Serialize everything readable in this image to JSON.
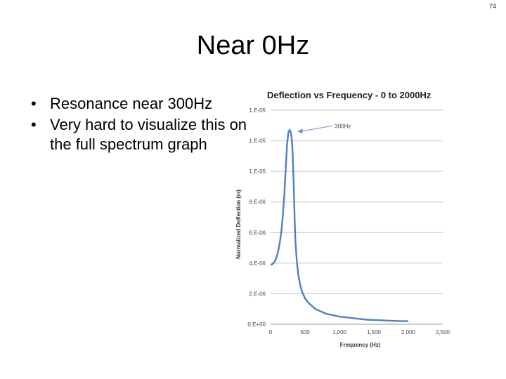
{
  "slide": {
    "number": "74",
    "title": "Near 0Hz",
    "bullets": [
      "Resonance near 300Hz",
      "Very hard to visualize this on the full spectrum graph"
    ],
    "bullet_glyph": "•"
  },
  "chart_data": {
    "type": "line",
    "title": "Deflection vs Frequency - 0 to 2000Hz",
    "xlabel": "Frequency (Hz)",
    "ylabel": "Normalized Deflection (m)",
    "xlim": [
      0,
      2500
    ],
    "ylim": [
      0,
      1.4e-05
    ],
    "x_ticks": [
      0,
      500,
      1000,
      1500,
      2000,
      2500
    ],
    "x_tick_labels": [
      "0",
      "500",
      "1,000",
      "1,500",
      "2,000",
      "2,500"
    ],
    "y_ticks": [
      0,
      2e-06,
      4e-06,
      6e-06,
      8e-06,
      1e-05,
      1.2e-05,
      1.4e-05
    ],
    "y_tick_labels": [
      "0.E+00",
      "2.E-06",
      "4.E-06",
      "6.E-06",
      "8.E-06",
      "1.E-05",
      "1.E-05",
      "1.E-05"
    ],
    "grid": "horizontal",
    "line_color": "#4f81bd",
    "annotation": {
      "text": "300Hz",
      "x": 300,
      "y": 1.27e-05
    },
    "series": [
      {
        "x": [
          0,
          20,
          40,
          60,
          80,
          100,
          120,
          140,
          160,
          180,
          200,
          220,
          240,
          260,
          280,
          290,
          300,
          310,
          320,
          330,
          340,
          350,
          360,
          380,
          400,
          420,
          440,
          460,
          500,
          550,
          600,
          650,
          700,
          800,
          900,
          1000,
          1100,
          1200,
          1300,
          1400,
          1500,
          1600,
          1700,
          1800,
          1900,
          2000
        ],
        "values": [
          3.9e-06,
          3.9e-06,
          4e-06,
          4.1e-06,
          4.3e-06,
          4.6e-06,
          5e-06,
          5.5e-06,
          6.2e-06,
          7.2e-06,
          8.5e-06,
          1.02e-05,
          1.18e-05,
          1.26e-05,
          1.27e-05,
          1.26e-05,
          1.24e-05,
          1.2e-05,
          1.12e-05,
          1e-05,
          8.5e-06,
          6.8e-06,
          5.5e-06,
          4.2e-06,
          3.3e-06,
          2.8e-06,
          2.4e-06,
          2.1e-06,
          1.7e-06,
          1.4e-06,
          1.2e-06,
          1e-06,
          9e-07,
          7e-07,
          6e-07,
          5e-07,
          4.5e-07,
          4e-07,
          3.5e-07,
          3e-07,
          2.8e-07,
          2.6e-07,
          2.4e-07,
          2.2e-07,
          2e-07,
          2e-07
        ]
      }
    ]
  }
}
